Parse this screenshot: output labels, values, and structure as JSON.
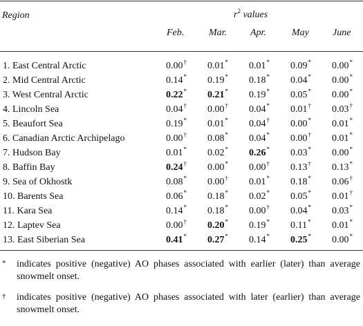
{
  "header": {
    "region_label": "Region",
    "r2_label_r": "r",
    "r2_label_sup": "2",
    "r2_label_rest": " values",
    "months": [
      "Feb.",
      "Mar.",
      "Apr.",
      "May",
      "June"
    ]
  },
  "rows": [
    {
      "region": "1. East Central Arctic",
      "cells": [
        {
          "v": "0.00",
          "m": "†",
          "b": false
        },
        {
          "v": "0.01",
          "m": "*",
          "b": false
        },
        {
          "v": "0.01",
          "m": "*",
          "b": false
        },
        {
          "v": "0.09",
          "m": "*",
          "b": false
        },
        {
          "v": "0.00",
          "m": "*",
          "b": false
        }
      ]
    },
    {
      "region": "2. Mid Central Arctic",
      "cells": [
        {
          "v": "0.14",
          "m": "*",
          "b": false
        },
        {
          "v": "0.19",
          "m": "*",
          "b": false
        },
        {
          "v": "0.18",
          "m": "*",
          "b": false
        },
        {
          "v": "0.04",
          "m": "*",
          "b": false
        },
        {
          "v": "0.00",
          "m": "*",
          "b": false
        }
      ]
    },
    {
      "region": "3. West Central Arctic",
      "cells": [
        {
          "v": "0.22",
          "m": "*",
          "b": true
        },
        {
          "v": "0.21",
          "m": "*",
          "b": true
        },
        {
          "v": "0.19",
          "m": "*",
          "b": false
        },
        {
          "v": "0.05",
          "m": "*",
          "b": false
        },
        {
          "v": "0.00",
          "m": "*",
          "b": false
        }
      ]
    },
    {
      "region": "4. Lincoln Sea",
      "cells": [
        {
          "v": "0.04",
          "m": "†",
          "b": false
        },
        {
          "v": "0.00",
          "m": "†",
          "b": false
        },
        {
          "v": "0.04",
          "m": "*",
          "b": false
        },
        {
          "v": "0.01",
          "m": "†",
          "b": false
        },
        {
          "v": "0.03",
          "m": "†",
          "b": false
        }
      ]
    },
    {
      "region": "5. Beaufort Sea",
      "cells": [
        {
          "v": "0.19",
          "m": "*",
          "b": false
        },
        {
          "v": "0.01",
          "m": "*",
          "b": false
        },
        {
          "v": "0.04",
          "m": "†",
          "b": false
        },
        {
          "v": "0.00",
          "m": "*",
          "b": false
        },
        {
          "v": "0.01",
          "m": "*",
          "b": false
        }
      ]
    },
    {
      "region": "6. Canadian Arctic Archipelago",
      "cells": [
        {
          "v": "0.00",
          "m": "†",
          "b": false
        },
        {
          "v": "0.08",
          "m": "*",
          "b": false
        },
        {
          "v": "0.04",
          "m": "*",
          "b": false
        },
        {
          "v": "0.00",
          "m": "†",
          "b": false
        },
        {
          "v": "0.01",
          "m": "*",
          "b": false
        }
      ]
    },
    {
      "region": "7. Hudson Bay",
      "cells": [
        {
          "v": "0.01",
          "m": "*",
          "b": false
        },
        {
          "v": "0.02",
          "m": "*",
          "b": false
        },
        {
          "v": "0.26",
          "m": "*",
          "b": true
        },
        {
          "v": "0.03",
          "m": "*",
          "b": false
        },
        {
          "v": "0.00",
          "m": "*",
          "b": false
        }
      ]
    },
    {
      "region": "8. Baffin Bay",
      "cells": [
        {
          "v": "0.24",
          "m": "†",
          "b": true
        },
        {
          "v": "0.00",
          "m": "*",
          "b": false
        },
        {
          "v": "0.00",
          "m": "†",
          "b": false
        },
        {
          "v": "0.13",
          "m": "†",
          "b": false
        },
        {
          "v": "0.13",
          "m": "*",
          "b": false
        }
      ]
    },
    {
      "region": "9. Sea of Okhostk",
      "cells": [
        {
          "v": "0.08",
          "m": "*",
          "b": false
        },
        {
          "v": "0.00",
          "m": "†",
          "b": false
        },
        {
          "v": "0.01",
          "m": "*",
          "b": false
        },
        {
          "v": "0.18",
          "m": "*",
          "b": false
        },
        {
          "v": "0.06",
          "m": "†",
          "b": false
        }
      ]
    },
    {
      "region": "10. Barents Sea",
      "cells": [
        {
          "v": "0.06",
          "m": "*",
          "b": false
        },
        {
          "v": "0.18",
          "m": "*",
          "b": false
        },
        {
          "v": "0.02",
          "m": "*",
          "b": false
        },
        {
          "v": "0.05",
          "m": "*",
          "b": false
        },
        {
          "v": "0.01",
          "m": "†",
          "b": false
        }
      ]
    },
    {
      "region": "11. Kara Sea",
      "cells": [
        {
          "v": "0.14",
          "m": "*",
          "b": false
        },
        {
          "v": "0.18",
          "m": "*",
          "b": false
        },
        {
          "v": "0.00",
          "m": "†",
          "b": false
        },
        {
          "v": "0.04",
          "m": "*",
          "b": false
        },
        {
          "v": "0.03",
          "m": "*",
          "b": false
        }
      ]
    },
    {
      "region": "12. Laptev Sea",
      "cells": [
        {
          "v": "0.00",
          "m": "†",
          "b": false
        },
        {
          "v": "0.20",
          "m": "*",
          "b": true
        },
        {
          "v": "0.19",
          "m": "*",
          "b": false
        },
        {
          "v": "0.11",
          "m": "*",
          "b": false
        },
        {
          "v": "0.01",
          "m": "*",
          "b": false
        }
      ]
    },
    {
      "region": "13. East Siberian Sea",
      "cells": [
        {
          "v": "0.41",
          "m": "*",
          "b": true
        },
        {
          "v": "0.27",
          "m": "*",
          "b": true
        },
        {
          "v": "0.14",
          "m": "*",
          "b": false
        },
        {
          "v": "0.25",
          "m": "*",
          "b": true
        },
        {
          "v": "0.00",
          "m": "*",
          "b": false
        }
      ]
    }
  ],
  "footnotes": [
    {
      "symbol": "*",
      "text": "indicates positive (negative) AO phases associated with earlier (later) than average snowmelt onset."
    },
    {
      "symbol": "†",
      "text": "indicates positive (negative) AO phases associated with later (earlier) than average snowmelt onset."
    }
  ]
}
